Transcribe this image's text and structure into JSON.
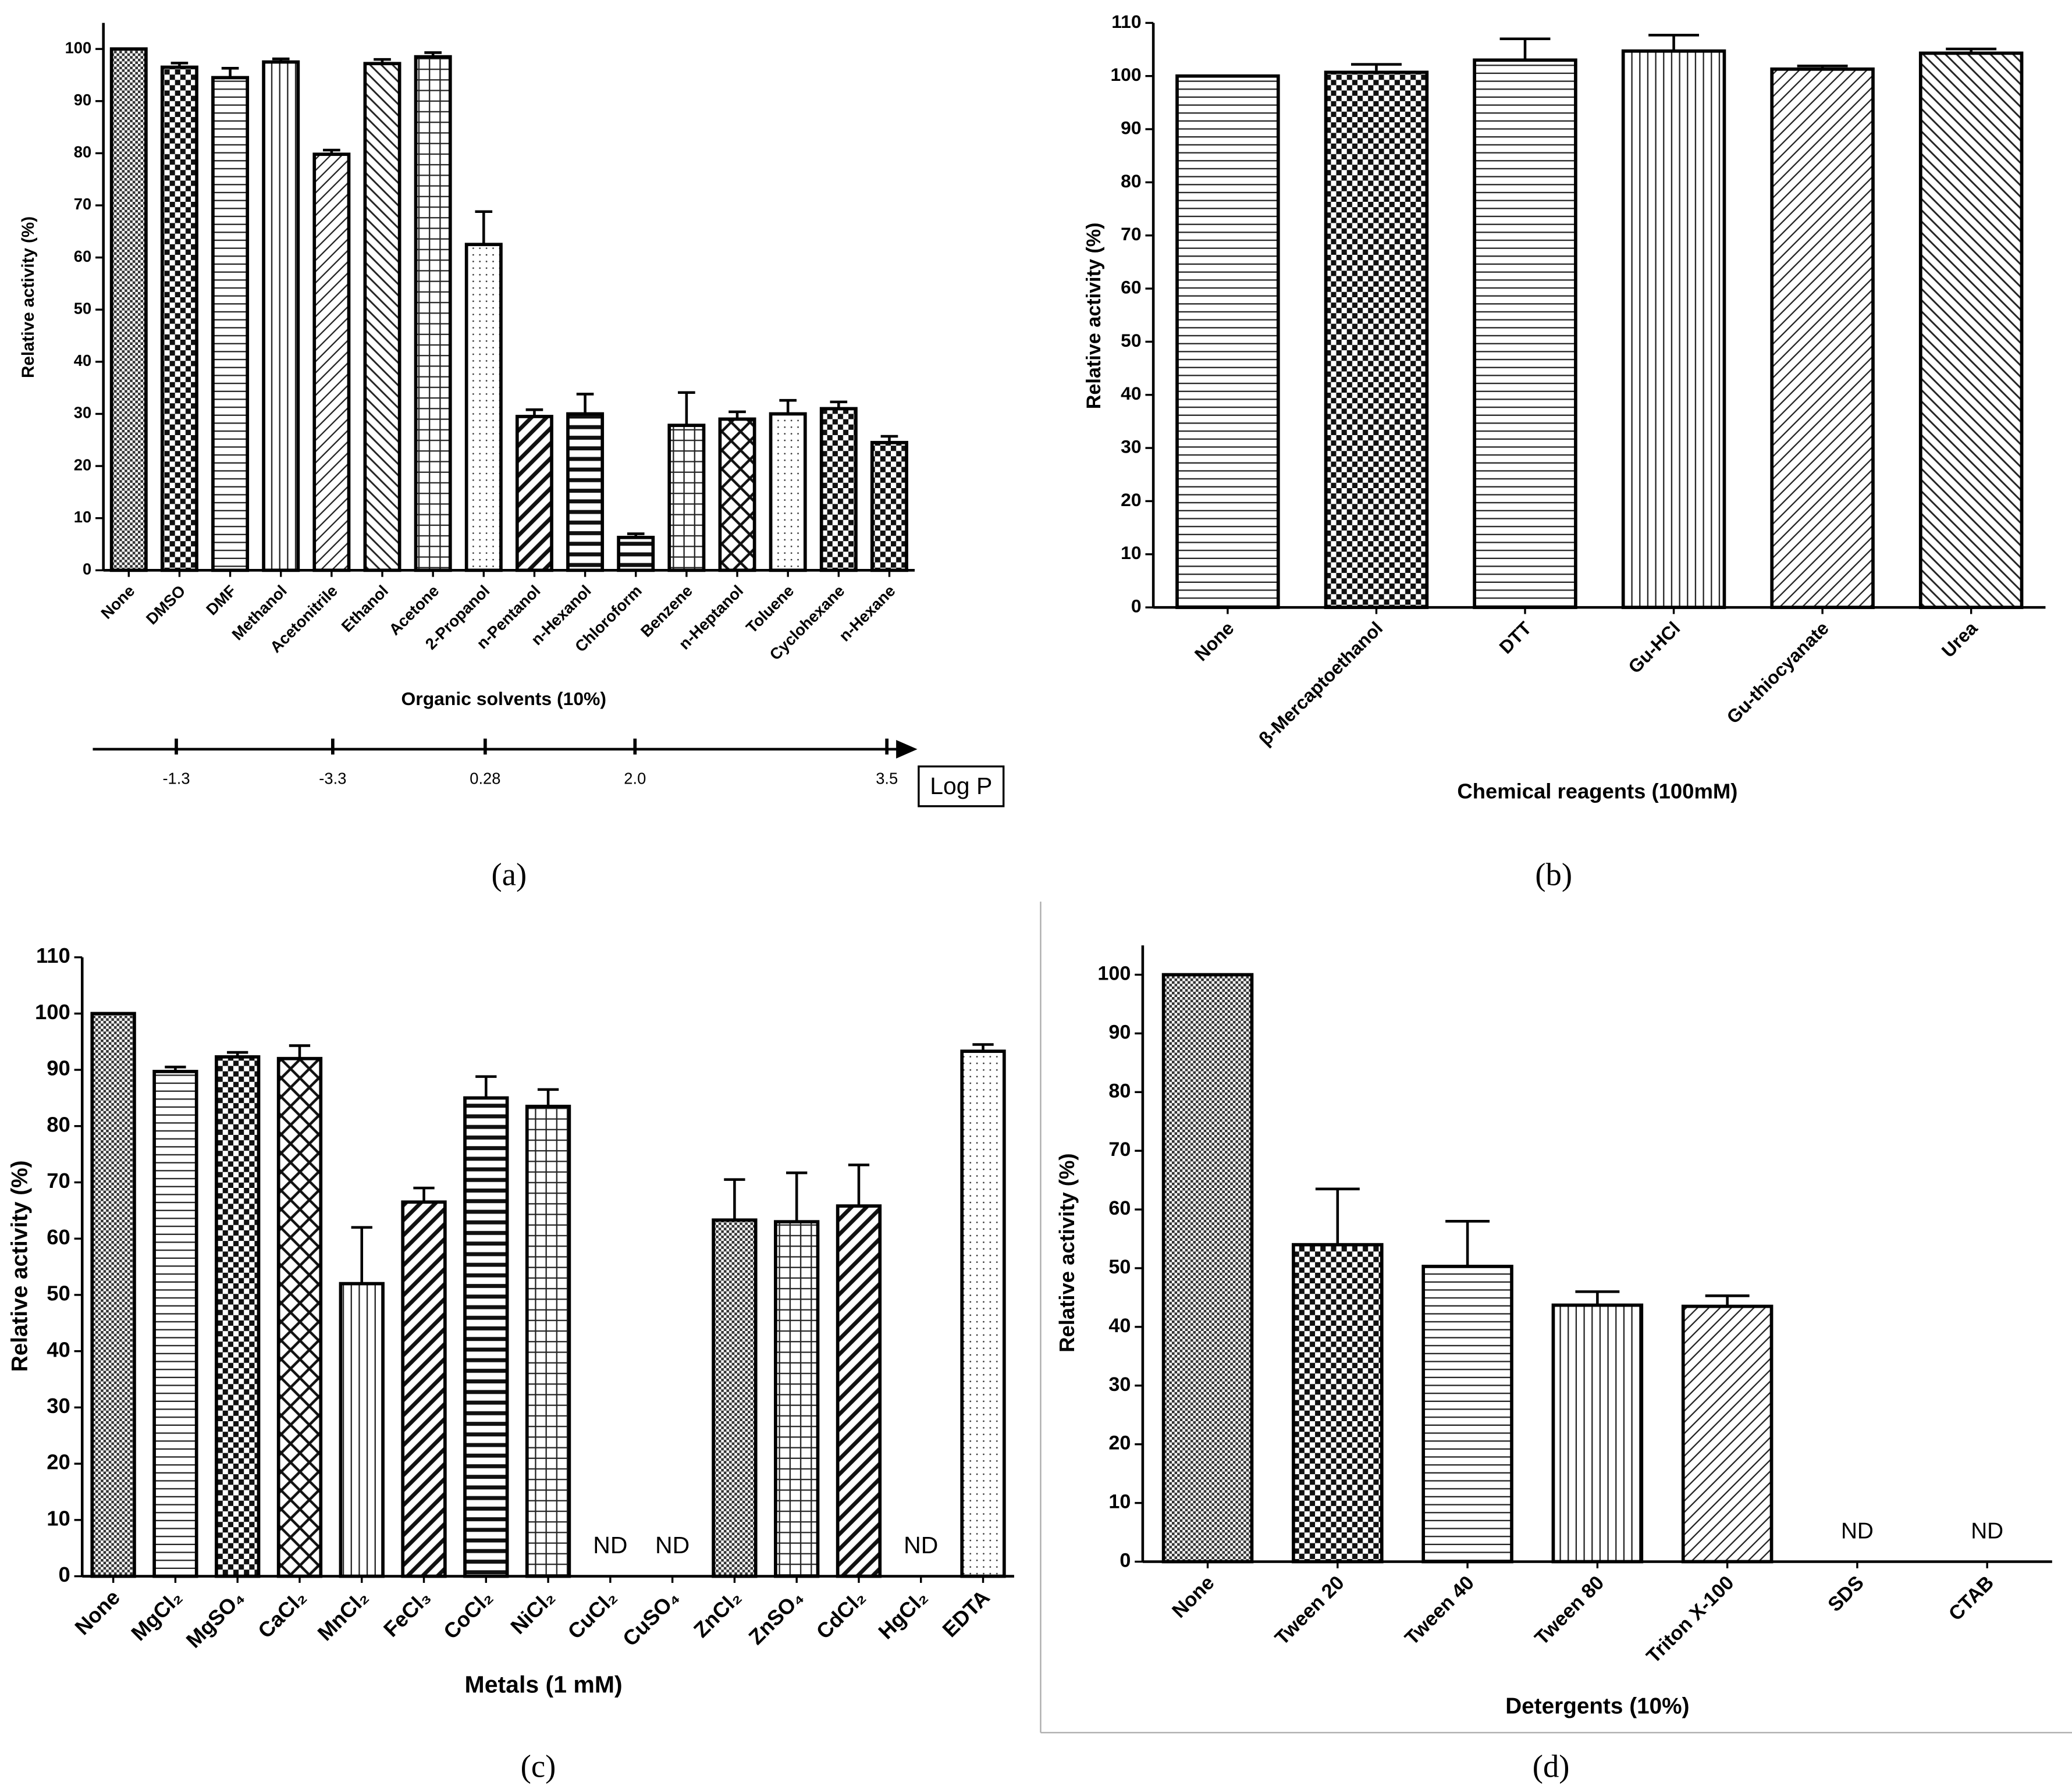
{
  "chart_data": [
    {
      "type": "bar",
      "panel_label": "(a)",
      "xlabel": "Organic solvents (10%)",
      "ylabel": "Relative activity (%)",
      "categories": [
        "None",
        "DMSO",
        "DMF",
        "Methanol",
        "Acetonitrile",
        "Ethanol",
        "Acetone",
        "2-Propanol",
        "n-Pentanol",
        "n-Hexanol",
        "Chloroform",
        "Benzene",
        "n-Heptanol",
        "Toluene",
        "Cyclohexane",
        "n-Hexane"
      ],
      "values": [
        100,
        96.5,
        94.5,
        97.5,
        79.8,
        97.2,
        98.5,
        62.5,
        29.5,
        30,
        6.3,
        27.8,
        29,
        30,
        31,
        24.5
      ],
      "errors": [
        0,
        0.8,
        1.8,
        0.6,
        0.8,
        0.8,
        0.8,
        6.3,
        1.3,
        3.8,
        0.7,
        6.3,
        1.4,
        2.6,
        1.3,
        1.2
      ],
      "ylim": [
        0,
        105
      ],
      "yticks": [
        0,
        10,
        20,
        30,
        40,
        50,
        60,
        70,
        80,
        90,
        100
      ],
      "logp_axis": {
        "label": "Log P",
        "ticks": [
          -1.3,
          -3.3,
          0.28,
          {
            "value": 2,
            "label": "2.0"
          },
          3.5
        ]
      }
    },
    {
      "type": "bar",
      "panel_label": "(b)",
      "xlabel": "Chemical reagents (100mM)",
      "ylabel": "Relative activity (%)",
      "categories": [
        "None",
        "β-Mercaptoethanol",
        "DTT",
        "Gu-HCl",
        "Gu-thiocyanate",
        "Urea"
      ],
      "values": [
        100,
        100.7,
        103,
        104.7,
        101.3,
        104.3
      ],
      "errors": [
        0,
        1.5,
        4,
        3,
        0.6,
        0.8
      ],
      "ylim": [
        0,
        110
      ],
      "yticks": [
        0,
        10,
        20,
        30,
        40,
        50,
        60,
        70,
        80,
        90,
        100,
        110
      ]
    },
    {
      "type": "bar",
      "panel_label": "(c)",
      "xlabel": "Metals (1 mM)",
      "ylabel": "Relative activity (%)",
      "categories": [
        "None",
        "MgCl₂",
        "MgSO₄",
        "CaCl₂",
        "MnCl₂",
        "FeCl₃",
        "CoCl₂",
        "NiCl₂",
        "CuCl₂",
        "CuSO₄",
        "ZnCl₂",
        "ZnSO₄",
        "CdCl₂",
        "HgCl₂",
        "EDTA"
      ],
      "values": [
        100,
        89.7,
        92.3,
        92,
        52,
        66.5,
        85,
        83.5,
        null,
        null,
        63.3,
        63,
        65.8,
        null,
        93.3
      ],
      "errors": [
        0,
        0.8,
        0.8,
        2.3,
        10,
        2.5,
        3.8,
        3,
        null,
        null,
        7.2,
        8.7,
        7.3,
        null,
        1.2
      ],
      "value_labels": [
        null,
        null,
        null,
        null,
        null,
        null,
        null,
        null,
        "ND",
        "ND",
        null,
        null,
        null,
        "ND",
        null
      ],
      "ylim": [
        0,
        110
      ],
      "yticks": [
        0,
        10,
        20,
        30,
        40,
        50,
        60,
        70,
        80,
        90,
        100,
        110
      ]
    },
    {
      "type": "bar",
      "panel_label": "(d)",
      "xlabel": "Detergents (10%)",
      "ylabel": "Relative activity (%)",
      "categories": [
        "None",
        "Tween 20",
        "Tween 40",
        "Tween 80",
        "Triton X-100",
        "SDS",
        "CTAB"
      ],
      "values": [
        100,
        54,
        50.3,
        43.7,
        43.5,
        null,
        null
      ],
      "errors": [
        0,
        9.5,
        7.7,
        2.3,
        1.8,
        null,
        null
      ],
      "value_labels": [
        null,
        null,
        null,
        null,
        null,
        "ND",
        "ND"
      ],
      "ylim": [
        0,
        105
      ],
      "yticks": [
        0,
        10,
        20,
        30,
        40,
        50,
        60,
        70,
        80,
        90,
        100
      ]
    }
  ]
}
